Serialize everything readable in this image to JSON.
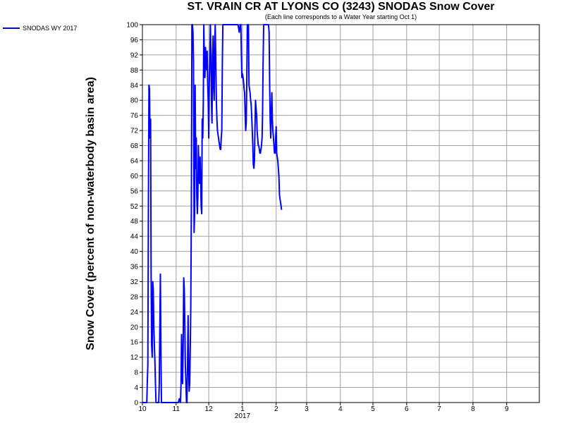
{
  "chart_data": {
    "type": "line",
    "title": "ST. VRAIN CR AT LYONS CO (3243) SNODAS Snow Cover",
    "subtitle": "(Each line corresponds to a Water Year starting Oct 1)",
    "ylabel": "Snow Cover (percent of non-waterbody basin area)",
    "xlabel": "",
    "x_ticks": [
      "10",
      "11",
      "12",
      "1",
      "2",
      "3",
      "4",
      "5",
      "6",
      "7",
      "8",
      "9"
    ],
    "x_year_label": "2017",
    "ylim": [
      0,
      100
    ],
    "y_ticks": [
      0,
      4,
      8,
      12,
      16,
      20,
      24,
      28,
      32,
      36,
      40,
      44,
      48,
      52,
      56,
      60,
      64,
      68,
      72,
      76,
      80,
      84,
      88,
      92,
      96,
      100
    ],
    "grid": true,
    "legend_position": "top-left",
    "series": [
      {
        "name": "SNODAS WY 2017",
        "color": "#0000ff",
        "x_unit": "days since Oct 1 2016",
        "points": [
          [
            0,
            0
          ],
          [
            1,
            0
          ],
          [
            2,
            0
          ],
          [
            3,
            0
          ],
          [
            4,
            0
          ],
          [
            4.5,
            5
          ],
          [
            5,
            10
          ],
          [
            5.5,
            52
          ],
          [
            6,
            84
          ],
          [
            6.5,
            83
          ],
          [
            7,
            70
          ],
          [
            7.5,
            75
          ],
          [
            8,
            35
          ],
          [
            8.5,
            15
          ],
          [
            9,
            12
          ],
          [
            9.5,
            32
          ],
          [
            10,
            30
          ],
          [
            10.5,
            20
          ],
          [
            11,
            15
          ],
          [
            11.5,
            11
          ],
          [
            12,
            5
          ],
          [
            12.5,
            0
          ],
          [
            13,
            0
          ],
          [
            14,
            0
          ],
          [
            15,
            0
          ],
          [
            15.5,
            5
          ],
          [
            16,
            20
          ],
          [
            16.5,
            34
          ],
          [
            17,
            15
          ],
          [
            17.5,
            0
          ],
          [
            18,
            0
          ],
          [
            19,
            0
          ],
          [
            20,
            0
          ],
          [
            21,
            0
          ],
          [
            22,
            0
          ],
          [
            23,
            0
          ],
          [
            24,
            0
          ],
          [
            25,
            0
          ],
          [
            26,
            0
          ],
          [
            27,
            0
          ],
          [
            28,
            0
          ],
          [
            29,
            0
          ],
          [
            30,
            0
          ],
          [
            31,
            0
          ],
          [
            32,
            0
          ],
          [
            33,
            0
          ],
          [
            34,
            1
          ],
          [
            35,
            0
          ],
          [
            35.5,
            5
          ],
          [
            36,
            18
          ],
          [
            36.5,
            8
          ],
          [
            37,
            5
          ],
          [
            37.5,
            15
          ],
          [
            38,
            33
          ],
          [
            38.5,
            30
          ],
          [
            39,
            20
          ],
          [
            39.5,
            10
          ],
          [
            40,
            5
          ],
          [
            40.5,
            0
          ],
          [
            41,
            0
          ],
          [
            41.5,
            10
          ],
          [
            42,
            23
          ],
          [
            42.5,
            10
          ],
          [
            43,
            3
          ],
          [
            43.5,
            5
          ],
          [
            44,
            15
          ],
          [
            44.5,
            25
          ],
          [
            45,
            50
          ],
          [
            45.5,
            100
          ],
          [
            46,
            100
          ],
          [
            46.5,
            98
          ],
          [
            47,
            90
          ],
          [
            47.5,
            45
          ],
          [
            48,
            50
          ],
          [
            48.5,
            84
          ],
          [
            49,
            62
          ],
          [
            49.5,
            70
          ],
          [
            50,
            55
          ],
          [
            50.5,
            50
          ],
          [
            51,
            55
          ],
          [
            51.5,
            68
          ],
          [
            52,
            60
          ],
          [
            52.5,
            58
          ],
          [
            53,
            65
          ],
          [
            53.5,
            60
          ],
          [
            54,
            52
          ],
          [
            54.5,
            50
          ],
          [
            55,
            75
          ],
          [
            55.5,
            70
          ],
          [
            56,
            80
          ],
          [
            56.5,
            100
          ],
          [
            57,
            90
          ],
          [
            57.5,
            86
          ],
          [
            58,
            94
          ],
          [
            58.5,
            90
          ],
          [
            59,
            88
          ],
          [
            59.5,
            93
          ],
          [
            60,
            85
          ],
          [
            60.5,
            80
          ],
          [
            61,
            70
          ],
          [
            61.5,
            85
          ],
          [
            62,
            90
          ],
          [
            62.5,
            100
          ],
          [
            63,
            92
          ],
          [
            63.5,
            80
          ],
          [
            64,
            74
          ],
          [
            64.5,
            92
          ],
          [
            65,
            97
          ],
          [
            65.5,
            84
          ],
          [
            66,
            80
          ],
          [
            66.5,
            95
          ],
          [
            67,
            100
          ],
          [
            67.5,
            90
          ],
          [
            68,
            80
          ],
          [
            68.5,
            75
          ],
          [
            69,
            72
          ],
          [
            69.5,
            71
          ],
          [
            70,
            70
          ],
          [
            70.5,
            69
          ],
          [
            71,
            68
          ],
          [
            71.5,
            67
          ],
          [
            72,
            67
          ],
          [
            72.5,
            70
          ],
          [
            73,
            72
          ],
          [
            73.5,
            90
          ],
          [
            74,
            100
          ],
          [
            75,
            100
          ],
          [
            76,
            100
          ],
          [
            77,
            100
          ],
          [
            78,
            100
          ],
          [
            79,
            100
          ],
          [
            80,
            100
          ],
          [
            81,
            100
          ],
          [
            82,
            100
          ],
          [
            83,
            100
          ],
          [
            84,
            100
          ],
          [
            85,
            100
          ],
          [
            86,
            100
          ],
          [
            87,
            100
          ],
          [
            88,
            100
          ],
          [
            88.5,
            99
          ],
          [
            89,
            98
          ],
          [
            89.5,
            99
          ],
          [
            90,
            100
          ],
          [
            90.5,
            100
          ],
          [
            91,
            92
          ],
          [
            91.5,
            86
          ],
          [
            92,
            87
          ],
          [
            92.5,
            86
          ],
          [
            93,
            85
          ],
          [
            93.5,
            83
          ],
          [
            94,
            82
          ],
          [
            94.5,
            76
          ],
          [
            95,
            72
          ],
          [
            95.5,
            74
          ],
          [
            96,
            86
          ],
          [
            96.5,
            100
          ],
          [
            97,
            100
          ],
          [
            97.5,
            100
          ],
          [
            98,
            84
          ],
          [
            98.5,
            83
          ],
          [
            99,
            82
          ],
          [
            99.5,
            80
          ],
          [
            100,
            79
          ],
          [
            100.5,
            76
          ],
          [
            101,
            72
          ],
          [
            101.5,
            68
          ],
          [
            102,
            63
          ],
          [
            102.5,
            62
          ],
          [
            103,
            64
          ],
          [
            103.5,
            72
          ],
          [
            104,
            80
          ],
          [
            104.5,
            78
          ],
          [
            105,
            76
          ],
          [
            105.5,
            72
          ],
          [
            106,
            70
          ],
          [
            106.5,
            68
          ],
          [
            107,
            68
          ],
          [
            107.5,
            67
          ],
          [
            108,
            66
          ],
          [
            108.5,
            66
          ],
          [
            109,
            67
          ],
          [
            109.5,
            68
          ],
          [
            110,
            70
          ],
          [
            110.5,
            76
          ],
          [
            111,
            90
          ],
          [
            111.5,
            100
          ],
          [
            112,
            100
          ],
          [
            113,
            100
          ],
          [
            114,
            100
          ],
          [
            115,
            100
          ],
          [
            116,
            100
          ],
          [
            116.5,
            98
          ],
          [
            117,
            84
          ],
          [
            117.5,
            75
          ],
          [
            118,
            70
          ],
          [
            118.5,
            76
          ],
          [
            119,
            82
          ],
          [
            119.5,
            75
          ],
          [
            120,
            72
          ],
          [
            120.5,
            70
          ],
          [
            121,
            68
          ],
          [
            121.5,
            66
          ],
          [
            122,
            66
          ],
          [
            122.5,
            70
          ],
          [
            123,
            73
          ],
          [
            123.5,
            66
          ],
          [
            124,
            65
          ],
          [
            124.5,
            64
          ],
          [
            125,
            62
          ],
          [
            125.5,
            60
          ],
          [
            126,
            55
          ],
          [
            126.5,
            54
          ],
          [
            127,
            53
          ],
          [
            127.5,
            52
          ],
          [
            128,
            51
          ]
        ]
      }
    ]
  }
}
